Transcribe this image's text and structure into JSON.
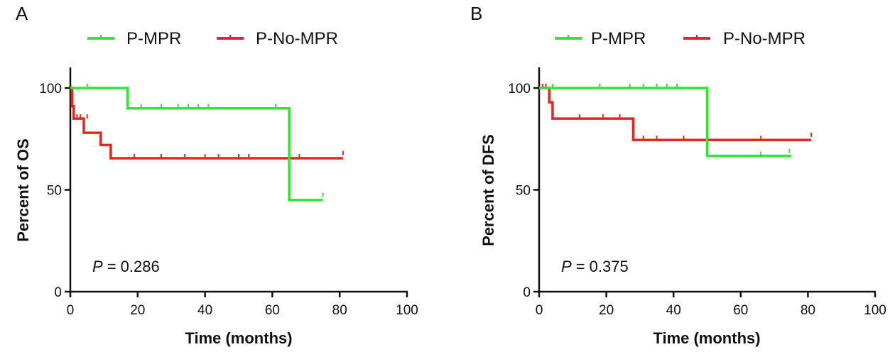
{
  "colors": {
    "P-MPR": "#33e533",
    "P-No-MPR": "#e8241e",
    "axis": "#111111"
  },
  "chart_data": [
    {
      "type": "line",
      "panel_label": "A",
      "legend": [
        "P-MPR",
        "P-No-MPR"
      ],
      "xlabel": "Time (months)",
      "ylabel": "Percent of OS",
      "xlim": [
        0,
        100
      ],
      "ylim": [
        0,
        100
      ],
      "xticks": [
        0,
        20,
        40,
        60,
        80,
        100
      ],
      "yticks": [
        0,
        50,
        100
      ],
      "annotation": {
        "p_label": "P",
        "p_value": "= 0.286"
      },
      "series": [
        {
          "name": "P-MPR",
          "x": [
            0,
            17,
            17,
            65,
            65,
            75
          ],
          "y": [
            100,
            100,
            90,
            90,
            45,
            45
          ],
          "censored": [
            [
              5,
              100
            ],
            [
              21,
              90
            ],
            [
              27,
              90
            ],
            [
              32,
              90
            ],
            [
              35,
              90
            ],
            [
              38,
              90
            ],
            [
              41,
              90
            ],
            [
              61,
              90
            ],
            [
              75,
              46.5
            ]
          ]
        },
        {
          "name": "P-No-MPR",
          "x": [
            0,
            0.5,
            0.5,
            1,
            1,
            4,
            4,
            9,
            9,
            12,
            12,
            81
          ],
          "y": [
            100,
            100,
            91,
            91,
            85,
            85,
            78,
            78,
            72,
            72,
            65.5,
            65.5
          ],
          "censored": [
            [
              2,
              85
            ],
            [
              3,
              85
            ],
            [
              5,
              85
            ],
            [
              19,
              65.5
            ],
            [
              27,
              65.5
            ],
            [
              34,
              65.5
            ],
            [
              40,
              65.5
            ],
            [
              44,
              65.5
            ],
            [
              50,
              65.5
            ],
            [
              53,
              65.5
            ],
            [
              68,
              65.5
            ],
            [
              81,
              67
            ]
          ]
        }
      ]
    },
    {
      "type": "line",
      "panel_label": "B",
      "legend": [
        "P-MPR",
        "P-No-MPR"
      ],
      "xlabel": "Time (months)",
      "ylabel": "Percent of DFS",
      "xlim": [
        0,
        100
      ],
      "ylim": [
        0,
        100
      ],
      "xticks": [
        0,
        20,
        40,
        60,
        80,
        100
      ],
      "yticks": [
        0,
        50,
        100
      ],
      "annotation": {
        "p_label": "P",
        "p_value": "= 0.375"
      },
      "series": [
        {
          "name": "P-MPR",
          "x": [
            0,
            50,
            50,
            75
          ],
          "y": [
            100,
            100,
            66.7,
            66.7
          ],
          "censored": [
            [
              4,
              100
            ],
            [
              18,
              100
            ],
            [
              27,
              100
            ],
            [
              31,
              100
            ],
            [
              35,
              100
            ],
            [
              38,
              100
            ],
            [
              41,
              100
            ],
            [
              66,
              66.7
            ],
            [
              74.5,
              68
            ]
          ]
        },
        {
          "name": "P-No-MPR",
          "x": [
            0,
            3,
            3,
            4,
            4,
            28,
            28,
            81
          ],
          "y": [
            100,
            100,
            93,
            93,
            85,
            85,
            74.5,
            74.5
          ],
          "censored": [
            [
              1,
              100
            ],
            [
              2,
              100
            ],
            [
              12,
              85
            ],
            [
              19,
              85
            ],
            [
              24,
              85
            ],
            [
              31,
              74.5
            ],
            [
              35,
              74.5
            ],
            [
              43,
              74.5
            ],
            [
              66,
              74.5
            ],
            [
              81,
              76
            ]
          ]
        }
      ]
    }
  ]
}
